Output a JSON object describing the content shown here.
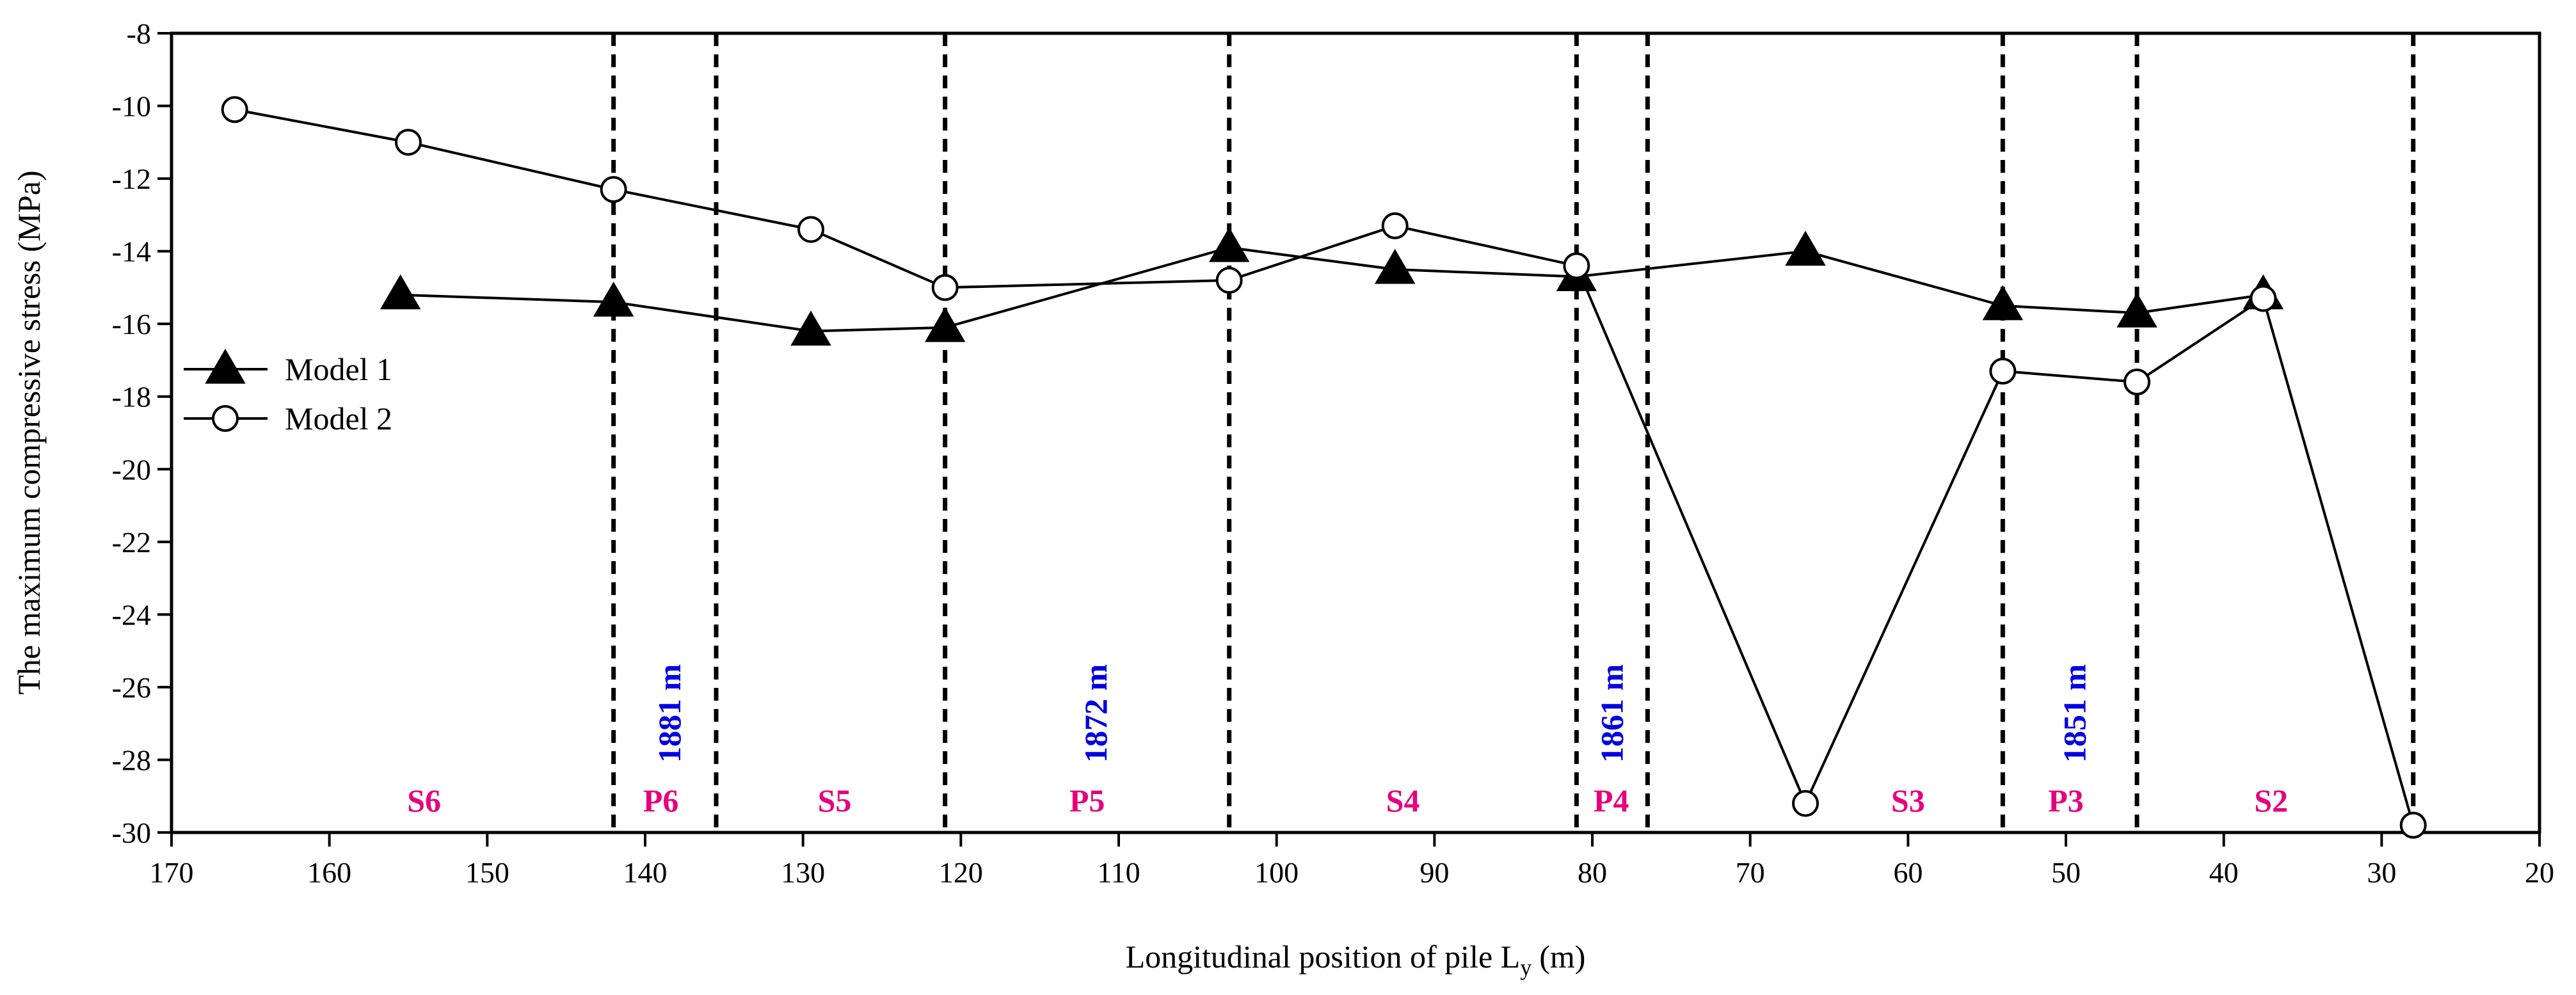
{
  "chart_data": {
    "type": "line",
    "xlabel": "Longitudinal position of  pile L",
    "xlabel_subscript": "y",
    "xlabel_unit": "(m)",
    "ylabel": "The maximum compressive stress (MPa)",
    "xlim": [
      170,
      20
    ],
    "ylim": [
      -30,
      -8
    ],
    "xticks": [
      170,
      160,
      150,
      140,
      130,
      120,
      110,
      100,
      90,
      80,
      70,
      60,
      50,
      40,
      30,
      20
    ],
    "yticks": [
      -8,
      -10,
      -12,
      -14,
      -16,
      -18,
      -20,
      -22,
      -24,
      -26,
      -28,
      -30
    ],
    "series": [
      {
        "name": "Model 1",
        "marker": "filled-triangle",
        "x": [
          155.5,
          142,
          129.5,
          121,
          103,
          92.5,
          81,
          66.5,
          54,
          45.5,
          37.5
        ],
        "y": [
          -15.2,
          -15.4,
          -16.2,
          -16.1,
          -13.9,
          -14.5,
          -14.7,
          -14.0,
          -15.5,
          -15.7,
          -15.2
        ]
      },
      {
        "name": "Model 2",
        "marker": "open-circle",
        "x": [
          166,
          155,
          142,
          129.5,
          121,
          103,
          92.5,
          81,
          66.5,
          54,
          45.5,
          37.5,
          28
        ],
        "y": [
          -10.1,
          -11.0,
          -12.3,
          -13.4,
          -15.0,
          -14.8,
          -13.3,
          -14.4,
          -29.2,
          -17.3,
          -17.6,
          -15.3,
          -29.8
        ]
      }
    ],
    "boundaries": [
      142,
      135.5,
      121,
      103,
      81,
      76.5,
      54,
      45.5,
      28
    ],
    "sections": [
      {
        "label": "S6",
        "x": 154
      },
      {
        "label": "P6",
        "x": 139
      },
      {
        "label": "S5",
        "x": 128
      },
      {
        "label": "P5",
        "x": 112
      },
      {
        "label": "S4",
        "x": 92
      },
      {
        "label": "P4",
        "x": 78.8
      },
      {
        "label": "S3",
        "x": 60
      },
      {
        "label": "P3",
        "x": 50
      },
      {
        "label": "S2",
        "x": 37
      }
    ],
    "elevations": [
      {
        "label": "1881 m",
        "x": 138.5
      },
      {
        "label": "1872 m",
        "x": 111.5
      },
      {
        "label": "1861 m",
        "x": 78.8
      },
      {
        "label": "1851 m",
        "x": 49.5
      }
    ],
    "legend_position": "left"
  },
  "colors": {
    "section": "#e6007e",
    "elevation": "#0000e0",
    "axis": "#000000"
  }
}
